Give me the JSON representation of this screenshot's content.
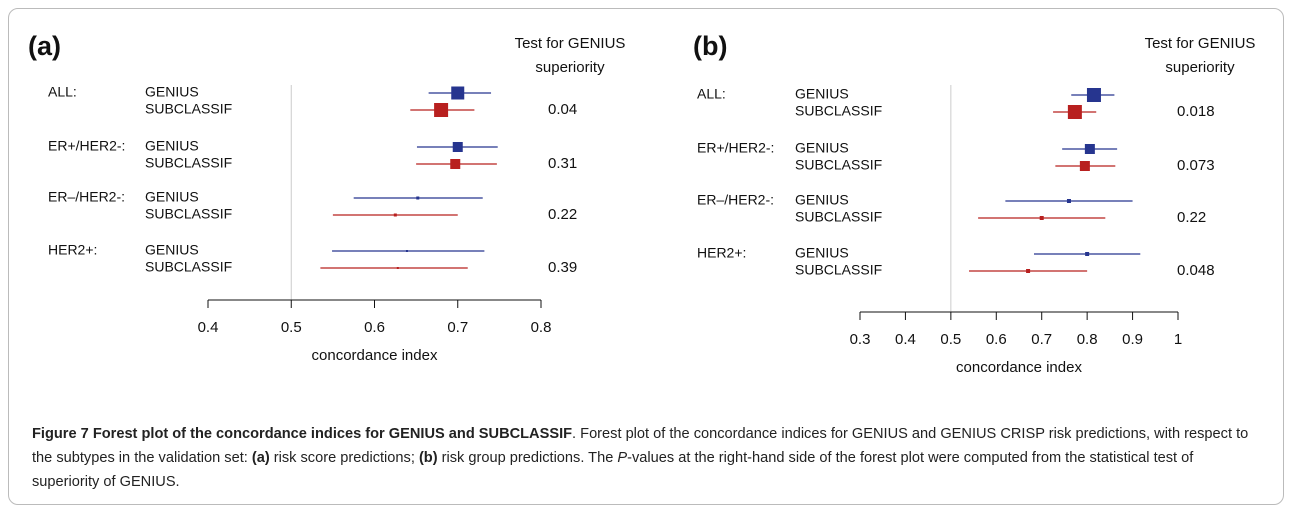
{
  "chart_data": [
    {
      "type": "forest",
      "panel_label": "(a)",
      "test_label": [
        "Test for GENIUS",
        "superiority"
      ],
      "groups": [
        "ALL:",
        "ER+/HER2-:",
        "ER–/HER2-:",
        "HER2+:"
      ],
      "series": [
        {
          "name": "GENIUS",
          "color": "#26358f",
          "values": [
            0.7,
            0.7,
            0.652,
            0.639
          ],
          "lower": [
            0.665,
            0.651,
            0.575,
            0.549
          ],
          "upper": [
            0.74,
            0.748,
            0.73,
            0.732
          ],
          "weights": [
            13,
            10,
            3,
            2
          ]
        },
        {
          "name": "SUBCLASSIF",
          "color": "#b8201f",
          "values": [
            0.68,
            0.697,
            0.625,
            0.628
          ],
          "lower": [
            0.643,
            0.65,
            0.55,
            0.535
          ],
          "upper": [
            0.72,
            0.747,
            0.7,
            0.712
          ],
          "weights": [
            14,
            10,
            3,
            2
          ]
        }
      ],
      "pvalues": [
        0.04,
        0.31,
        0.22,
        0.39
      ],
      "xlabel": "concordance index",
      "xlim": [
        0.4,
        0.8
      ],
      "xticks": [
        0.4,
        0.5,
        0.6,
        0.7,
        0.8
      ],
      "refline": 0.5
    },
    {
      "type": "forest",
      "panel_label": "(b)",
      "test_label": [
        "Test for GENIUS",
        "superiority"
      ],
      "groups": [
        "ALL:",
        "ER+/HER2-:",
        "ER–/HER2-:",
        "HER2+:"
      ],
      "series": [
        {
          "name": "GENIUS",
          "color": "#26358f",
          "values": [
            0.815,
            0.806,
            0.76,
            0.8
          ],
          "lower": [
            0.765,
            0.745,
            0.62,
            0.683
          ],
          "upper": [
            0.86,
            0.866,
            0.9,
            0.917
          ],
          "weights": [
            14,
            10,
            4,
            4
          ]
        },
        {
          "name": "SUBCLASSIF",
          "color": "#b8201f",
          "values": [
            0.773,
            0.795,
            0.7,
            0.67
          ],
          "lower": [
            0.725,
            0.73,
            0.56,
            0.54
          ],
          "upper": [
            0.82,
            0.862,
            0.84,
            0.8
          ],
          "weights": [
            14,
            10,
            4,
            4
          ]
        }
      ],
      "pvalues": [
        0.018,
        0.073,
        0.22,
        0.048
      ],
      "xlabel": "concordance index",
      "xlim": [
        0.3,
        1
      ],
      "xticks": [
        0.3,
        0.4,
        0.5,
        0.6,
        0.7,
        0.8,
        0.9,
        1
      ],
      "refline": 0.5
    }
  ],
  "caption": [
    "Figure 7 Forest plot of the concordance indices for GENIUS and SUBCLASSIF",
    ". Forest plot of the concordance indices for GENIUS and GENIUS CRISP risk predictions, with respect to the subtypes in the validation set: ",
    "(a)",
    " risk score predictions; ",
    "(b)",
    " risk group predictions. The ",
    "P",
    "-values at the right-hand side of the forest plot were computed from the statistical test of superiority of GENIUS."
  ]
}
